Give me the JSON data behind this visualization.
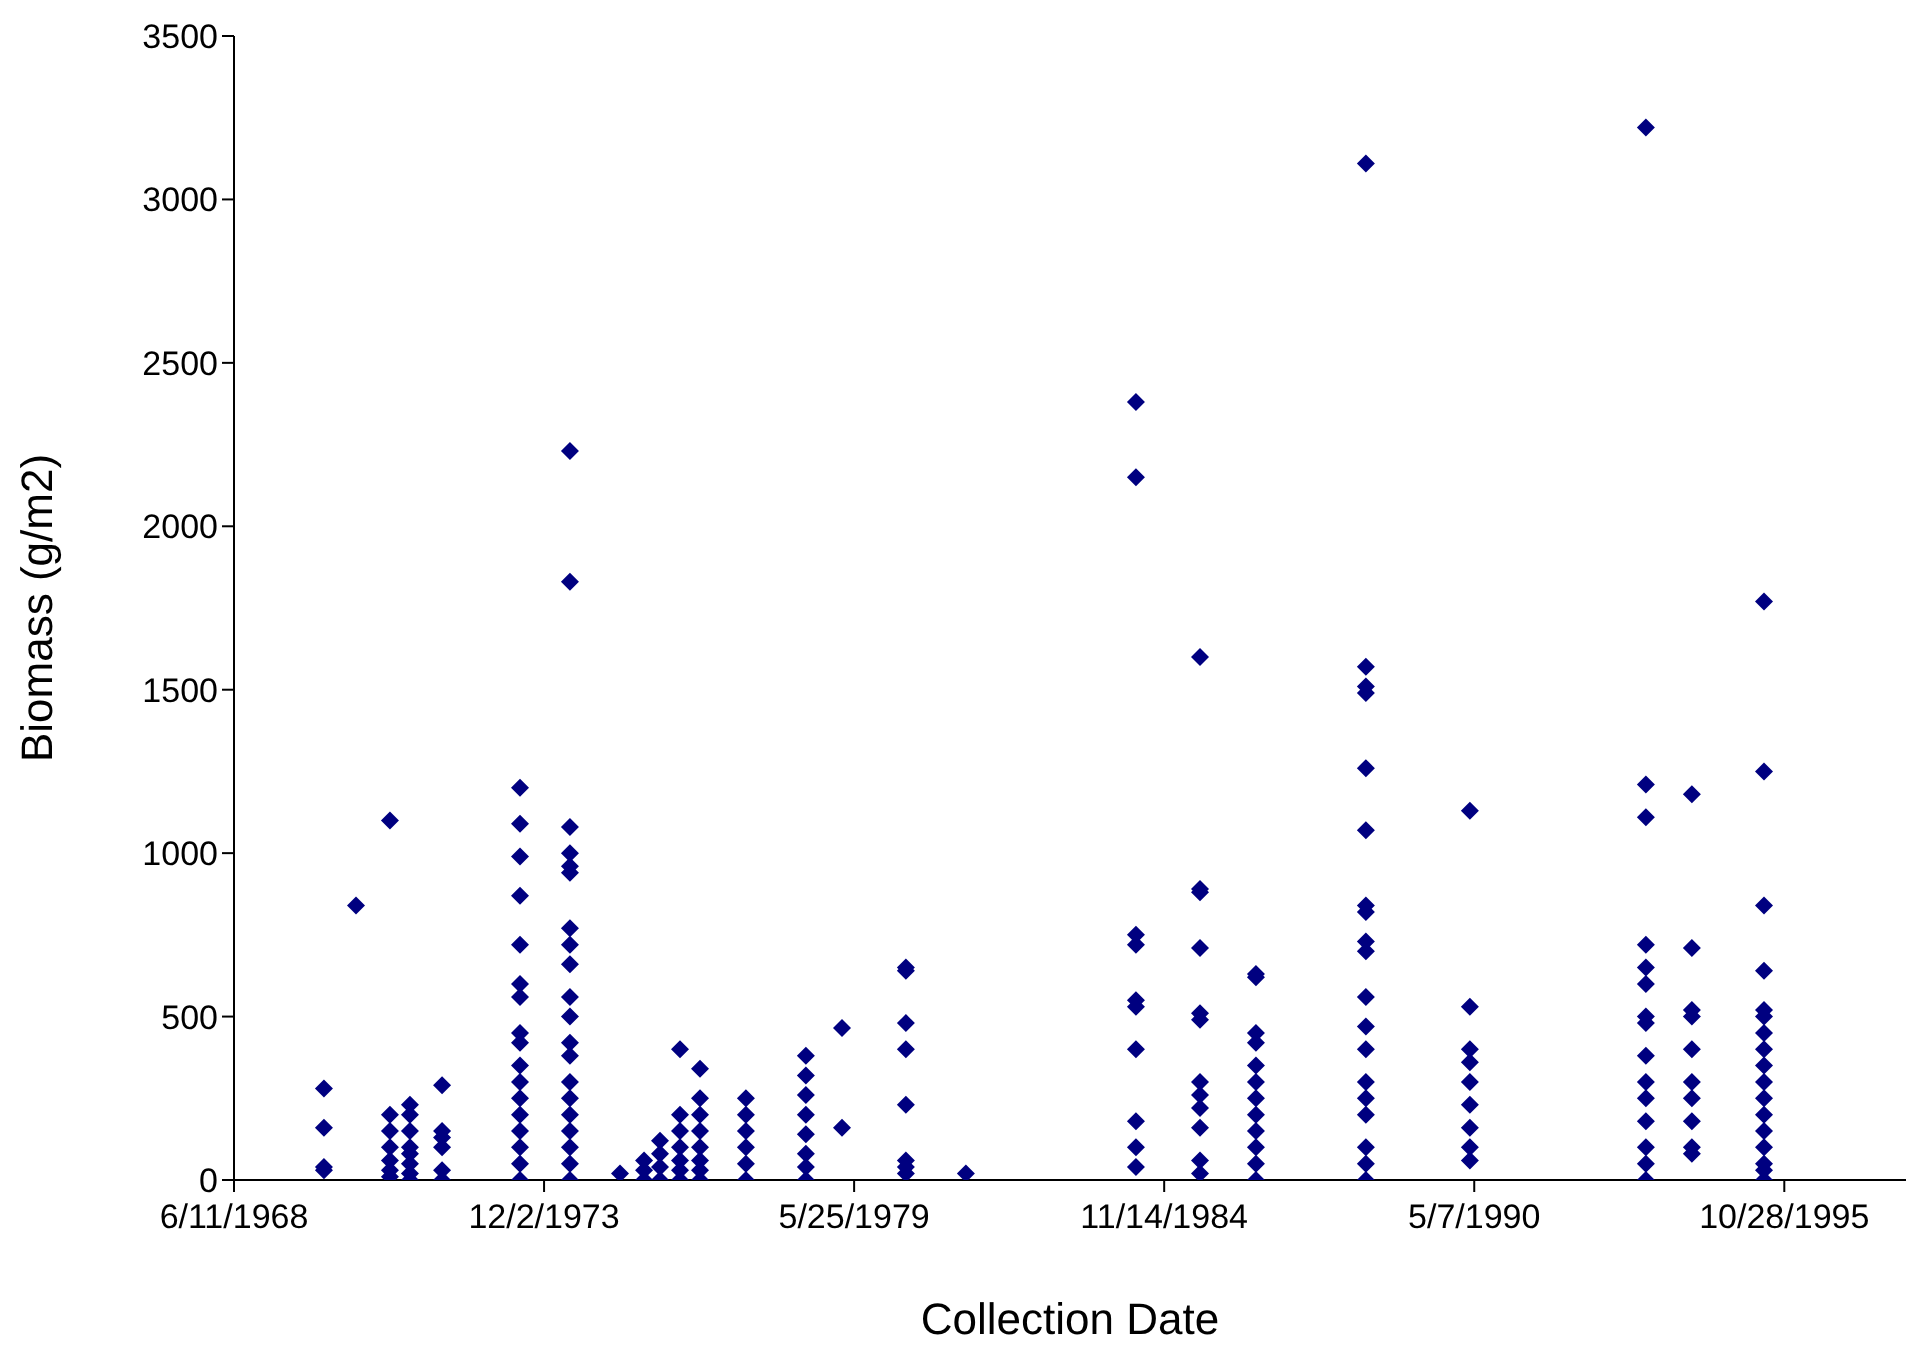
{
  "chart_data": {
    "type": "scatter",
    "xlabel": "Collection Date",
    "ylabel": "Biomass (g/m2)",
    "color": "#000080",
    "marker": "diamond",
    "grid": false,
    "legend": false,
    "xlim": [
      "1968-06-11",
      "1997-12-21"
    ],
    "xticks": [
      {
        "value": "1968-06-11",
        "label": "6/11/1968"
      },
      {
        "value": "1973-12-02",
        "label": "12/2/1973"
      },
      {
        "value": "1979-05-25",
        "label": "5/25/1979"
      },
      {
        "value": "1984-11-14",
        "label": "11/14/1984"
      },
      {
        "value": "1990-05-07",
        "label": "5/7/1990"
      },
      {
        "value": "1995-10-28",
        "label": "10/28/1995"
      }
    ],
    "ylim": [
      0,
      3500
    ],
    "yticks": [
      0,
      500,
      1000,
      1500,
      2000,
      2500,
      3000,
      3500
    ],
    "x": [
      "1970-01-12",
      "1970-01-12",
      "1970-01-12",
      "1970-01-12",
      "1970-08-07",
      "1971-03-14",
      "1971-03-14",
      "1971-03-14",
      "1971-03-14",
      "1971-03-14",
      "1971-03-14",
      "1971-03-14",
      "1971-07-21",
      "1971-07-21",
      "1971-07-21",
      "1971-07-21",
      "1971-07-21",
      "1971-07-21",
      "1971-07-21",
      "1971-07-21",
      "1972-02-13",
      "1972-02-13",
      "1972-02-13",
      "1972-02-13",
      "1972-02-13",
      "1972-02-13",
      "1973-06-30",
      "1973-06-30",
      "1973-06-30",
      "1973-06-30",
      "1973-06-30",
      "1973-06-30",
      "1973-06-30",
      "1973-06-30",
      "1973-06-30",
      "1973-06-30",
      "1973-06-30",
      "1973-06-30",
      "1973-06-30",
      "1973-06-30",
      "1973-06-30",
      "1973-06-30",
      "1973-06-30",
      "1974-05-18",
      "1974-05-18",
      "1974-05-18",
      "1974-05-18",
      "1974-05-18",
      "1974-05-18",
      "1974-05-18",
      "1974-05-18",
      "1974-05-18",
      "1974-05-18",
      "1974-05-18",
      "1974-05-18",
      "1974-05-18",
      "1974-05-18",
      "1974-05-18",
      "1974-05-18",
      "1974-05-18",
      "1974-05-18",
      "1974-05-18",
      "1974-05-18",
      "1975-04-06",
      "1975-09-08",
      "1975-09-08",
      "1975-09-08",
      "1975-12-20",
      "1975-12-20",
      "1975-12-20",
      "1975-12-20",
      "1976-04-27",
      "1976-04-27",
      "1976-04-27",
      "1976-04-27",
      "1976-04-27",
      "1976-04-27",
      "1976-04-27",
      "1976-09-03",
      "1976-09-03",
      "1976-09-03",
      "1976-09-03",
      "1976-09-03",
      "1976-09-03",
      "1976-09-03",
      "1976-09-03",
      "1977-06-26",
      "1977-06-26",
      "1977-06-26",
      "1977-06-26",
      "1977-06-26",
      "1977-06-26",
      "1978-07-18",
      "1978-07-18",
      "1978-07-18",
      "1978-07-18",
      "1978-07-18",
      "1978-07-18",
      "1978-07-18",
      "1978-07-18",
      "1979-03-08",
      "1979-03-08",
      "1980-04-23",
      "1980-04-23",
      "1980-04-23",
      "1980-04-23",
      "1980-04-23",
      "1980-04-23",
      "1980-04-23",
      "1980-04-23",
      "1981-05-15",
      "1984-05-16",
      "1984-05-16",
      "1984-05-16",
      "1984-05-16",
      "1984-05-16",
      "1984-05-16",
      "1984-05-16",
      "1984-05-16",
      "1984-05-16",
      "1984-05-16",
      "1985-07-03",
      "1985-07-03",
      "1985-07-03",
      "1985-07-03",
      "1985-07-03",
      "1985-07-03",
      "1985-07-03",
      "1985-07-03",
      "1985-07-03",
      "1985-07-03",
      "1985-07-03",
      "1985-07-03",
      "1986-06-29",
      "1986-06-29",
      "1986-06-29",
      "1986-06-29",
      "1986-06-29",
      "1986-06-29",
      "1986-06-29",
      "1986-06-29",
      "1986-06-29",
      "1986-06-29",
      "1986-06-29",
      "1986-06-29",
      "1988-06-07",
      "1988-06-07",
      "1988-06-07",
      "1988-06-07",
      "1988-06-07",
      "1988-06-07",
      "1988-06-07",
      "1988-06-07",
      "1988-06-07",
      "1988-06-07",
      "1988-06-07",
      "1988-06-07",
      "1988-06-07",
      "1988-06-07",
      "1988-06-07",
      "1988-06-07",
      "1988-06-07",
      "1988-06-07",
      "1988-06-07",
      "1990-04-09",
      "1990-04-09",
      "1990-04-09",
      "1990-04-09",
      "1990-04-09",
      "1990-04-09",
      "1990-04-09",
      "1990-04-09",
      "1990-04-09",
      "1993-05-18",
      "1993-05-18",
      "1993-05-18",
      "1993-05-18",
      "1993-05-18",
      "1993-05-18",
      "1993-05-18",
      "1993-05-18",
      "1993-05-18",
      "1993-05-18",
      "1993-05-18",
      "1993-05-18",
      "1993-05-18",
      "1993-05-18",
      "1993-05-18",
      "1994-03-11",
      "1994-03-11",
      "1994-03-11",
      "1994-03-11",
      "1994-03-11",
      "1994-03-11",
      "1994-03-11",
      "1994-03-11",
      "1994-03-11",
      "1994-03-11",
      "1995-06-19",
      "1995-06-19",
      "1995-06-19",
      "1995-06-19",
      "1995-06-19",
      "1995-06-19",
      "1995-06-19",
      "1995-06-19",
      "1995-06-19",
      "1995-06-19",
      "1995-06-19",
      "1995-06-19",
      "1995-06-19",
      "1995-06-19",
      "1995-06-19",
      "1995-06-19",
      "1995-06-19"
    ],
    "values": [
      280,
      160,
      40,
      30,
      840,
      1100,
      200,
      150,
      100,
      60,
      30,
      10,
      230,
      200,
      150,
      100,
      80,
      50,
      20,
      0,
      290,
      150,
      130,
      100,
      30,
      0,
      1200,
      1090,
      990,
      870,
      720,
      600,
      560,
      450,
      420,
      350,
      300,
      250,
      200,
      150,
      100,
      50,
      0,
      2230,
      1830,
      1080,
      1000,
      960,
      940,
      770,
      720,
      660,
      560,
      500,
      420,
      380,
      300,
      250,
      200,
      150,
      100,
      50,
      0,
      20,
      60,
      30,
      0,
      120,
      80,
      40,
      0,
      400,
      200,
      150,
      100,
      60,
      30,
      0,
      340,
      250,
      200,
      150,
      100,
      60,
      30,
      0,
      250,
      200,
      150,
      100,
      50,
      0,
      380,
      320,
      260,
      200,
      140,
      80,
      40,
      0,
      465,
      160,
      650,
      640,
      480,
      400,
      230,
      60,
      40,
      20,
      20,
      2380,
      2150,
      750,
      720,
      550,
      530,
      400,
      180,
      100,
      40,
      1600,
      890,
      880,
      710,
      510,
      490,
      300,
      260,
      220,
      160,
      60,
      20,
      630,
      620,
      450,
      420,
      350,
      300,
      250,
      200,
      150,
      100,
      50,
      0,
      3110,
      1570,
      1510,
      1490,
      1260,
      1070,
      840,
      820,
      730,
      700,
      560,
      470,
      400,
      300,
      250,
      200,
      100,
      50,
      0,
      1130,
      530,
      400,
      360,
      300,
      230,
      160,
      100,
      60,
      3220,
      1210,
      1110,
      720,
      650,
      600,
      500,
      480,
      380,
      300,
      250,
      180,
      100,
      50,
      0,
      1180,
      710,
      520,
      500,
      400,
      300,
      250,
      180,
      100,
      80,
      1770,
      1250,
      840,
      640,
      520,
      500,
      450,
      400,
      350,
      300,
      250,
      200,
      150,
      100,
      50,
      30,
      0
    ]
  }
}
